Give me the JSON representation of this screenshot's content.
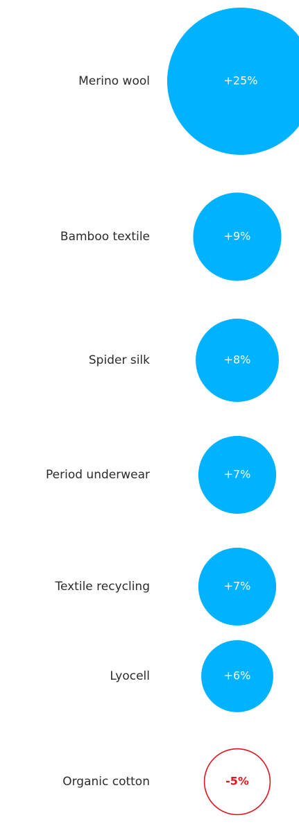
{
  "chart_data": {
    "type": "bubble",
    "categories": [
      "Merino wool",
      "Bamboo textile",
      "Spider silk",
      "Period underwear",
      "Textile recycling",
      "Lyocell",
      "Organic cotton"
    ],
    "values": [
      25,
      9,
      8,
      7,
      7,
      6,
      -5
    ],
    "value_labels": [
      "+25%",
      "+9%",
      "+8%",
      "+7%",
      "+7%",
      "+6%",
      "-5%"
    ],
    "colors": {
      "positive_fill": "#00b2ff",
      "negative_stroke": "#e0141e",
      "negative_text": "#e0141e",
      "label_text": "#2b2b2b"
    }
  }
}
